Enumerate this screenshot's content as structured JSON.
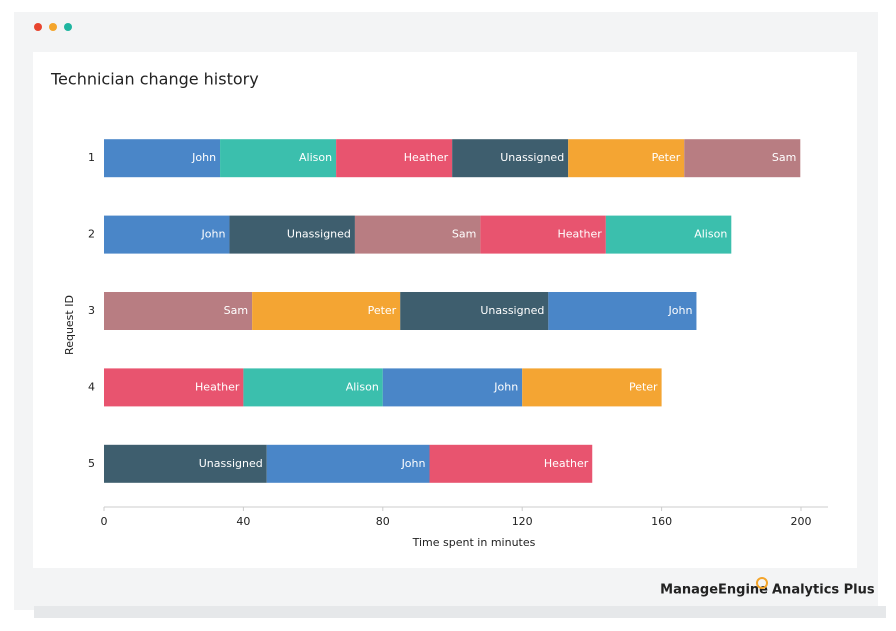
{
  "chart_data": {
    "type": "stacked-bar-h",
    "title": "Technician change history",
    "y_label": "Request ID",
    "x_label": "Time spent in minutes",
    "categories": [
      "1",
      "2",
      "3",
      "4",
      "5"
    ],
    "rows": [
      {
        "segments": [
          {
            "name": "John",
            "value": 33.3,
            "color": "#4a86c8"
          },
          {
            "name": "Alison",
            "value": 33.3,
            "color": "#3bbfad"
          },
          {
            "name": "Heather",
            "value": 33.3,
            "color": "#e8546f"
          },
          {
            "name": "Unassigned",
            "value": 33.3,
            "color": "#3e5e6e"
          },
          {
            "name": "Peter",
            "value": 33.3,
            "color": "#f4a533"
          },
          {
            "name": "Sam",
            "value": 33.3,
            "color": "#b87d82"
          }
        ]
      },
      {
        "segments": [
          {
            "name": "John",
            "value": 36,
            "color": "#4a86c8"
          },
          {
            "name": "Unassigned",
            "value": 36,
            "color": "#3e5e6e"
          },
          {
            "name": "Sam",
            "value": 36,
            "color": "#b87d82"
          },
          {
            "name": "Heather",
            "value": 36,
            "color": "#e8546f"
          },
          {
            "name": "Alison",
            "value": 36,
            "color": "#3bbfad"
          }
        ]
      },
      {
        "segments": [
          {
            "name": "Sam",
            "value": 42.5,
            "color": "#b87d82"
          },
          {
            "name": "Peter",
            "value": 42.5,
            "color": "#f4a533"
          },
          {
            "name": "Unassigned",
            "value": 42.5,
            "color": "#3e5e6e"
          },
          {
            "name": "John",
            "value": 42.5,
            "color": "#4a86c8"
          }
        ]
      },
      {
        "segments": [
          {
            "name": "Heather",
            "value": 40,
            "color": "#e8546f"
          },
          {
            "name": "Alison",
            "value": 40,
            "color": "#3bbfad"
          },
          {
            "name": "John",
            "value": 40,
            "color": "#4a86c8"
          },
          {
            "name": "Peter",
            "value": 40,
            "color": "#f4a533"
          }
        ]
      },
      {
        "segments": [
          {
            "name": "Unassigned",
            "value": 46.7,
            "color": "#3e5e6e"
          },
          {
            "name": "John",
            "value": 46.7,
            "color": "#4a86c8"
          },
          {
            "name": "Heather",
            "value": 46.7,
            "color": "#e8546f"
          }
        ]
      }
    ],
    "xlim": [
      0,
      200
    ],
    "xticks": [
      0,
      40,
      80,
      120,
      160,
      200
    ]
  },
  "brand": {
    "name": "ManageEngine",
    "product": "Analytics Plus"
  }
}
